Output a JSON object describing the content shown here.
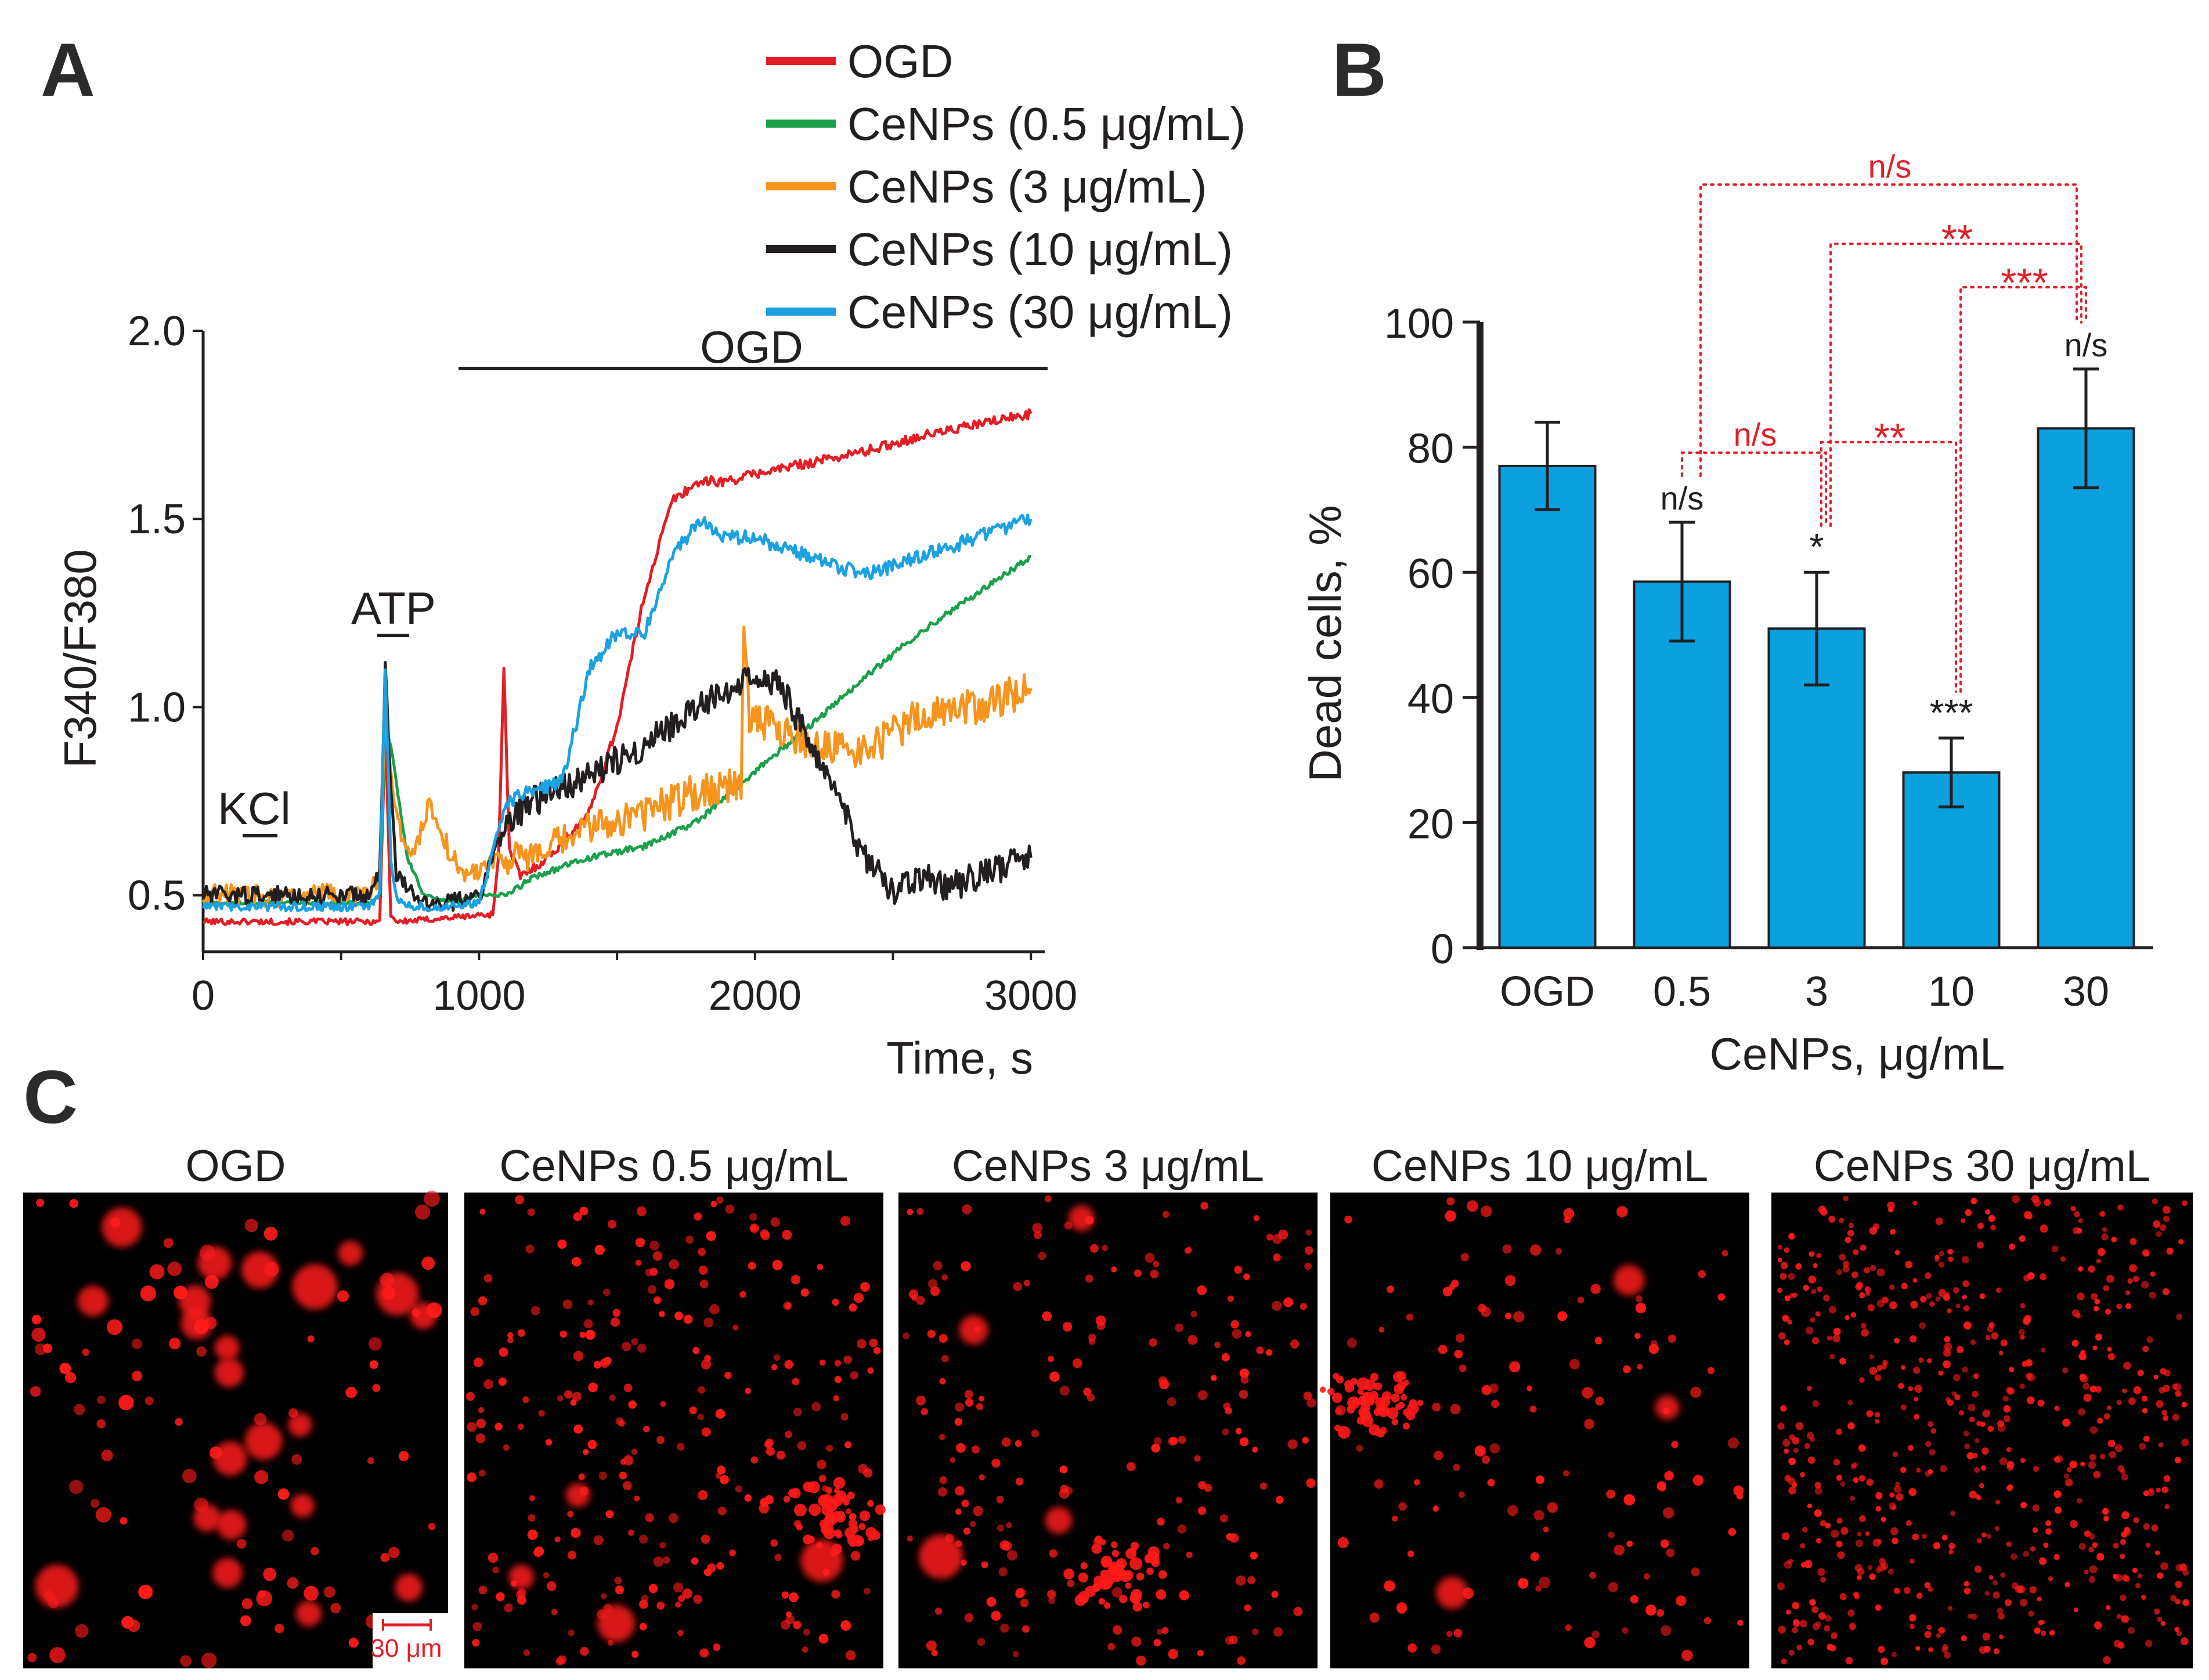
{
  "panels": {
    "a": "A",
    "b": "B",
    "c": "C"
  },
  "colors": {
    "ogd": "#e31e24",
    "c05": "#1aa04a",
    "c3": "#f7941d",
    "c10": "#231f20",
    "c30": "#1ba1e2",
    "bar": "#0ca0de",
    "sig": "#e0202a",
    "micro_bg": "#000000",
    "micro_dot": "#ff1a1a"
  },
  "chart_data": [
    {
      "type": "line",
      "panel": "A",
      "xlabel": "Time, s",
      "ylabel": "F340/F380",
      "xlim": [
        0,
        3050
      ],
      "ylim": [
        0.35,
        2.0
      ],
      "xticks": [
        "0",
        "1000",
        "2000",
        "3000"
      ],
      "yticks": [
        "0.5",
        "1.0",
        "1.5",
        "2.0"
      ],
      "annotations": {
        "kcl": "KCl",
        "atp": "ATP",
        "ogd_bar": "OGD"
      },
      "series": [
        {
          "name": "OGD",
          "x": [
            0,
            600,
            640,
            660,
            680,
            700,
            720,
            1050,
            1070,
            1090,
            1110,
            1150,
            1250,
            1400,
            1500,
            1600,
            1700,
            1800,
            1900,
            2000,
            2200,
            2400,
            2600,
            2800,
            3000
          ],
          "y": [
            0.43,
            0.43,
            0.43,
            0.95,
            0.45,
            0.43,
            0.43,
            0.45,
            0.6,
            1.1,
            0.62,
            0.55,
            0.6,
            0.72,
            0.95,
            1.3,
            1.55,
            1.6,
            1.6,
            1.62,
            1.65,
            1.68,
            1.72,
            1.75,
            1.78
          ]
        },
        {
          "name": "CeNPs (0.5 μg/mL)",
          "x": [
            0,
            600,
            640,
            660,
            680,
            700,
            740,
            800,
            900,
            1000,
            1100,
            1200,
            1400,
            1600,
            1800,
            2000,
            2200,
            2400,
            2600,
            2800,
            3000
          ],
          "y": [
            0.48,
            0.48,
            0.5,
            0.95,
            0.9,
            0.8,
            0.6,
            0.5,
            0.48,
            0.5,
            0.5,
            0.55,
            0.6,
            0.63,
            0.7,
            0.83,
            0.95,
            1.08,
            1.2,
            1.3,
            1.4
          ]
        },
        {
          "name": "CeNPs (3 μg/mL)",
          "x": [
            0,
            600,
            640,
            660,
            680,
            700,
            760,
            820,
            900,
            960,
            1050,
            1200,
            1400,
            1600,
            1800,
            1950,
            1960,
            1980,
            2200,
            2400,
            2600,
            2800,
            3000
          ],
          "y": [
            0.5,
            0.5,
            0.55,
            1.0,
            0.85,
            0.7,
            0.6,
            0.75,
            0.6,
            0.55,
            0.6,
            0.6,
            0.68,
            0.72,
            0.78,
            0.8,
            1.2,
            0.98,
            0.9,
            0.88,
            0.98,
            1.0,
            1.05
          ]
        },
        {
          "name": "CeNPs (10 μg/mL)",
          "x": [
            0,
            600,
            640,
            660,
            680,
            700,
            760,
            820,
            900,
            1000,
            1100,
            1200,
            1400,
            1600,
            1800,
            2000,
            2100,
            2200,
            2300,
            2400,
            2500,
            2600,
            2700,
            2800,
            3000
          ],
          "y": [
            0.5,
            0.5,
            0.55,
            1.12,
            0.8,
            0.55,
            0.5,
            0.48,
            0.48,
            0.5,
            0.7,
            0.75,
            0.82,
            0.9,
            1.0,
            1.1,
            1.05,
            0.9,
            0.75,
            0.6,
            0.5,
            0.55,
            0.52,
            0.55,
            0.6
          ]
        },
        {
          "name": "CeNPs (30 μg/mL)",
          "x": [
            0,
            600,
            640,
            660,
            680,
            700,
            740,
            800,
            900,
            1000,
            1100,
            1200,
            1300,
            1400,
            1500,
            1600,
            1700,
            1800,
            1900,
            2000,
            2200,
            2400,
            2600,
            2800,
            3000
          ],
          "y": [
            0.47,
            0.47,
            0.5,
            1.1,
            0.6,
            0.5,
            0.47,
            0.47,
            0.47,
            0.48,
            0.75,
            0.78,
            0.8,
            1.1,
            1.2,
            1.2,
            1.4,
            1.5,
            1.45,
            1.45,
            1.4,
            1.35,
            1.4,
            1.45,
            1.5
          ]
        }
      ]
    },
    {
      "type": "bar",
      "panel": "B",
      "xlabel": "CeNPs, μg/mL",
      "ylabel": "Dead cells, %",
      "ylim": [
        0,
        100
      ],
      "yticks": [
        "0",
        "20",
        "40",
        "60",
        "80",
        "100"
      ],
      "categories": [
        "OGD",
        "0.5",
        "3",
        "10",
        "30"
      ],
      "values": [
        77,
        58.5,
        51,
        28,
        83
      ],
      "errors": [
        7,
        9.5,
        9,
        5.5,
        9.5
      ],
      "sig_vs_ogd": [
        "",
        "n/s",
        "*",
        "***",
        "n/s"
      ],
      "brackets": [
        {
          "from": "0.5",
          "to": "3",
          "label": "n/s"
        },
        {
          "from": "3",
          "to": "10",
          "label": "**"
        },
        {
          "from": "10",
          "to": "30",
          "label": "***"
        },
        {
          "from": "3",
          "to": "30",
          "label": "**"
        },
        {
          "from": "0.5",
          "to": "30",
          "label": "n/s"
        }
      ]
    }
  ],
  "micrographs": [
    {
      "title": "OGD"
    },
    {
      "title": "CeNPs 0.5 μg/mL"
    },
    {
      "title": "CeNPs 3 μg/mL"
    },
    {
      "title": "CeNPs 10 μg/mL"
    },
    {
      "title": "CeNPs 30 μg/mL"
    }
  ],
  "scale_bar": "30 μm"
}
